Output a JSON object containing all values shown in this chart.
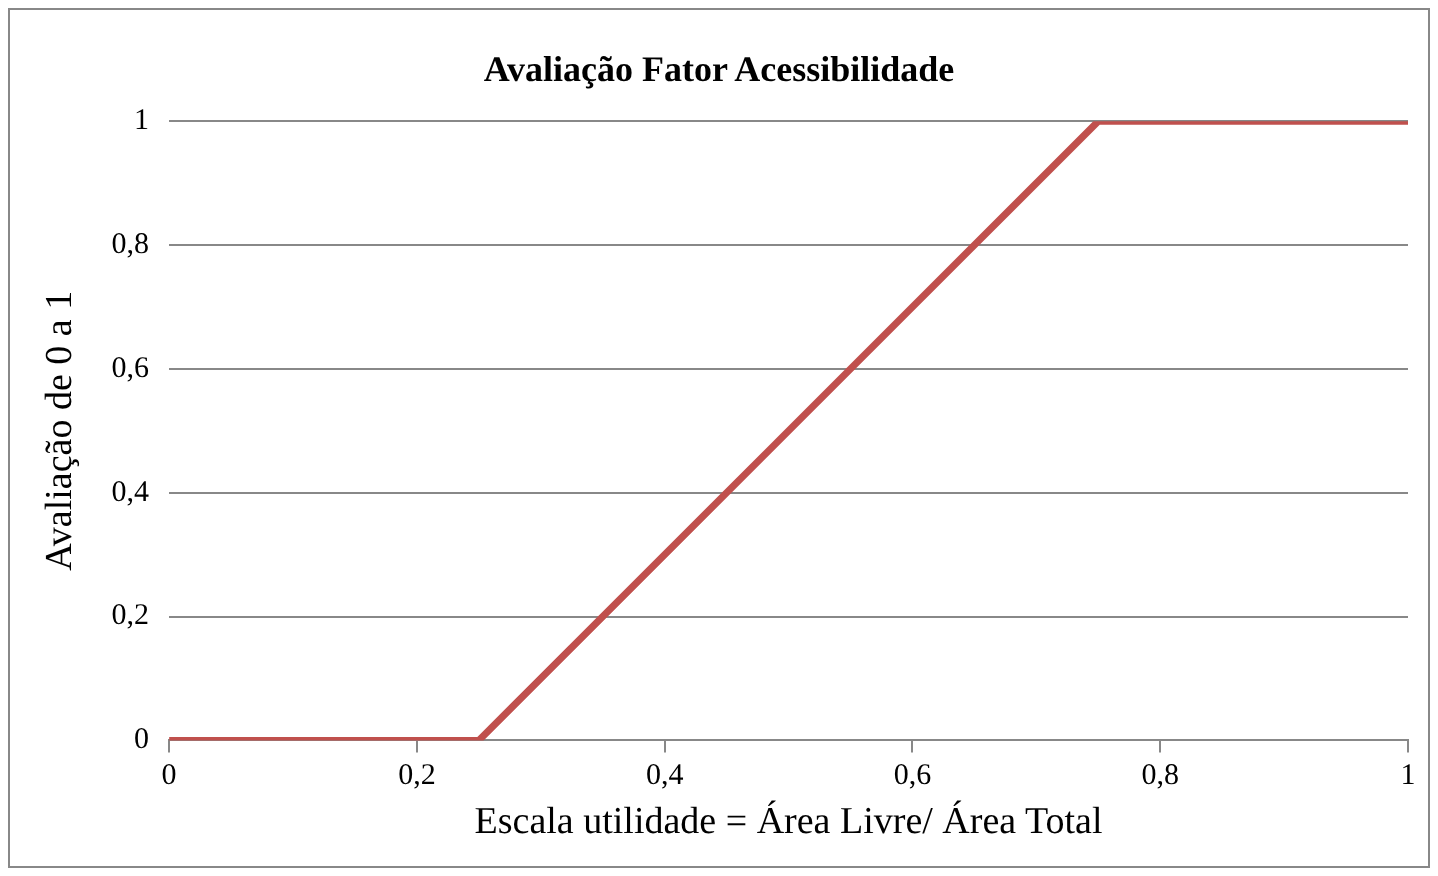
{
  "chart_data": {
    "type": "line",
    "title": "Avaliação Fator Acessibilidade",
    "xlabel": "Escala utilidade = Área Livre/ Área Total",
    "ylabel": "Avaliação de 0 a 1",
    "x": [
      0,
      0.25,
      0.75,
      1
    ],
    "series": [
      {
        "color": "#c0504d",
        "values": [
          0,
          0,
          1,
          1
        ]
      }
    ],
    "xlim": [
      0,
      1
    ],
    "xticks": [
      0,
      {
        "value": 0.2,
        "label": "0,2"
      },
      {
        "value": 0.4,
        "label": "0,4"
      },
      {
        "value": 0.6,
        "label": "0,6"
      },
      {
        "value": 0.8,
        "label": "0,8"
      },
      1
    ],
    "ylim": [
      0,
      1
    ],
    "yticks": [
      0,
      {
        "value": 0.2,
        "label": "0,2"
      },
      {
        "value": 0.4,
        "label": "0,4"
      },
      {
        "value": 0.6,
        "label": "0,6"
      },
      {
        "value": 0.8,
        "label": "0,8"
      },
      1
    ],
    "grid": "y",
    "legend": false,
    "marker": "none",
    "line_style": "solid"
  }
}
